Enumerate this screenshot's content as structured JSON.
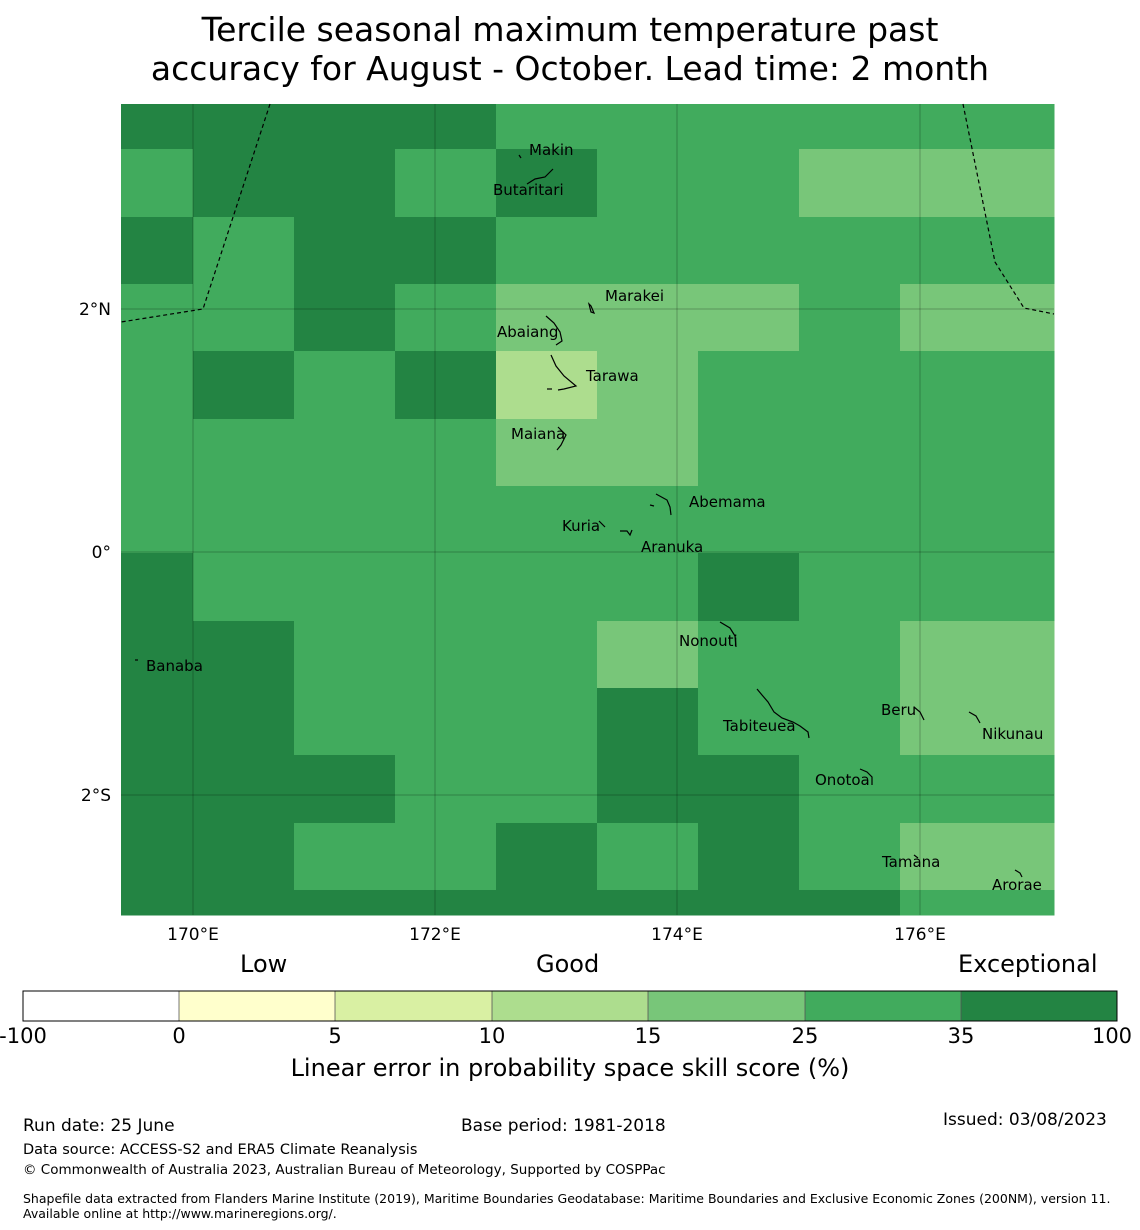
{
  "title_line1": "Tercile seasonal maximum temperature past",
  "title_line2": "accuracy for August - October. Lead time: 2 month",
  "axes": {
    "x_ticks": [
      "170°E",
      "172°E",
      "174°E",
      "176°E"
    ],
    "y_ticks": [
      "2°N",
      "0°",
      "2°S"
    ]
  },
  "colors": {
    "c0": "#ffffcc",
    "c5": "#d9f0a3",
    "c10": "#addd8e",
    "c15": "#78c679",
    "c25": "#41ab5d",
    "c35": "#238443"
  },
  "grid_rows": [
    [
      35,
      35,
      35,
      35,
      25,
      25,
      25,
      25,
      25
    ],
    [
      25,
      35,
      35,
      25,
      35,
      25,
      25,
      15,
      15
    ],
    [
      35,
      25,
      35,
      35,
      25,
      25,
      25,
      25,
      25
    ],
    [
      25,
      25,
      35,
      25,
      15,
      15,
      15,
      25,
      15
    ],
    [
      25,
      35,
      25,
      35,
      10,
      15,
      25,
      25,
      25
    ],
    [
      25,
      25,
      25,
      25,
      15,
      15,
      25,
      25,
      25
    ],
    [
      25,
      25,
      25,
      25,
      25,
      25,
      25,
      25,
      25
    ],
    [
      35,
      25,
      25,
      25,
      25,
      25,
      35,
      25,
      25
    ],
    [
      35,
      35,
      25,
      25,
      25,
      15,
      25,
      25,
      15
    ],
    [
      35,
      35,
      25,
      25,
      25,
      35,
      25,
      25,
      15
    ],
    [
      35,
      35,
      35,
      25,
      25,
      35,
      35,
      25,
      25
    ],
    [
      35,
      35,
      25,
      25,
      35,
      25,
      35,
      25,
      15
    ],
    [
      35,
      35,
      35,
      35,
      35,
      35,
      35,
      35,
      25
    ]
  ],
  "islands": [
    {
      "name": "Makin"
    },
    {
      "name": "Butaritari"
    },
    {
      "name": "Marakei"
    },
    {
      "name": "Abaiang"
    },
    {
      "name": "Tarawa"
    },
    {
      "name": "Maiana"
    },
    {
      "name": "Abemama"
    },
    {
      "name": "Kuria"
    },
    {
      "name": "Aranuka"
    },
    {
      "name": "Banaba"
    },
    {
      "name": "Nonouti"
    },
    {
      "name": "Beru"
    },
    {
      "name": "Tabiteuea"
    },
    {
      "name": "Nikunau"
    },
    {
      "name": "Onotoa"
    },
    {
      "name": "Tamana"
    },
    {
      "name": "Arorae"
    }
  ],
  "colorbar": {
    "words": [
      "Low",
      "Good",
      "Exceptional"
    ],
    "ticks": [
      "-100",
      "0",
      "5",
      "10",
      "15",
      "25",
      "35",
      "100"
    ],
    "label": "Linear error in probability space skill score (%)"
  },
  "footer": {
    "run_date": "Run date: 25 June",
    "base_period": "Base period: 1981-2018",
    "issued": "Issued: 03/08/2023",
    "data_source": "Data source: ACCESS-S2 and ERA5 Climate Reanalysis",
    "copyright": "© Commonwealth of Australia 2023, Australian Bureau of Meteorology, Supported by COSPPac",
    "shapefile": "Shapefile data extracted from Flanders Marine Institute (2019), Maritime Boundaries Geodatabase: Maritime Boundaries and Exclusive Economic Zones (200NM), version 11. Available online at http://www.marineregions.org/."
  }
}
